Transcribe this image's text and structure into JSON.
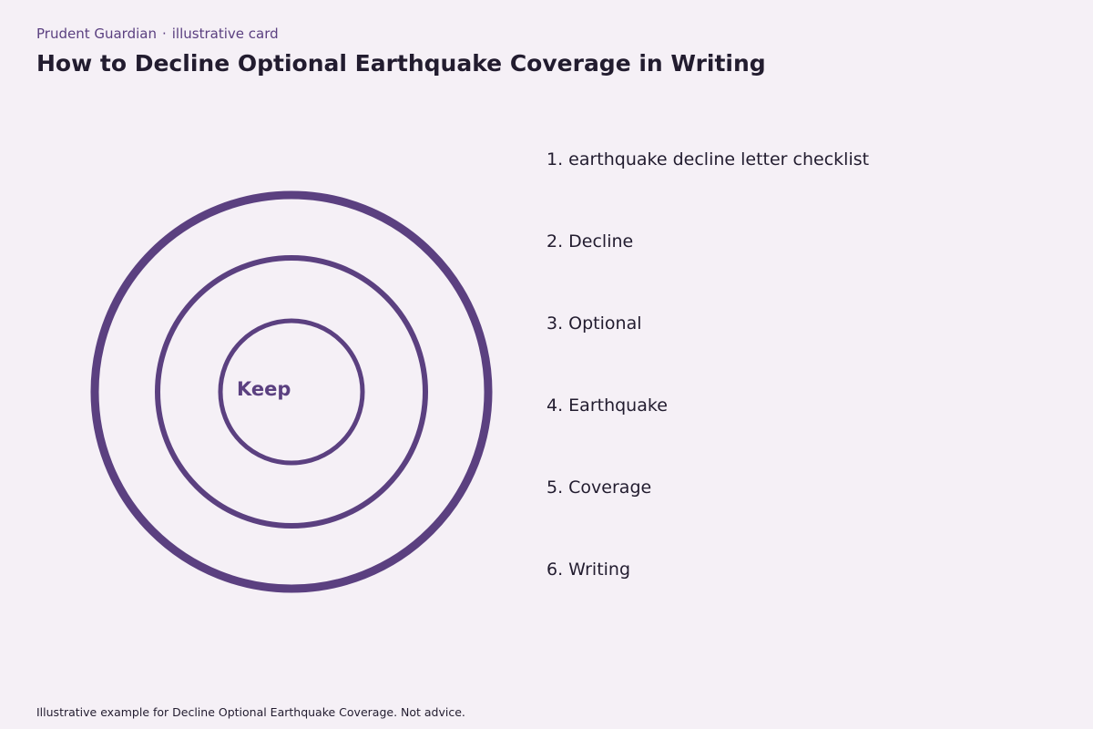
{
  "header": {
    "brand": "Prudent Guardian",
    "separator": "·",
    "card_type": "illustrative card",
    "title": "How to Decline Optional Earthquake Coverage in Writing"
  },
  "diagram": {
    "center_label": "Keep",
    "ring_color": "#5b4080",
    "ring_count": 3
  },
  "steps": [
    "1. earthquake decline letter checklist",
    "2. Decline",
    "3. Optional",
    "4. Earthquake",
    "5. Coverage",
    "6. Writing"
  ],
  "footer": {
    "note": "Illustrative example for Decline Optional Earthquake Coverage. Not advice."
  },
  "colors": {
    "background": "#f5f0f6",
    "accent": "#5b4080",
    "text": "#221c2f"
  }
}
